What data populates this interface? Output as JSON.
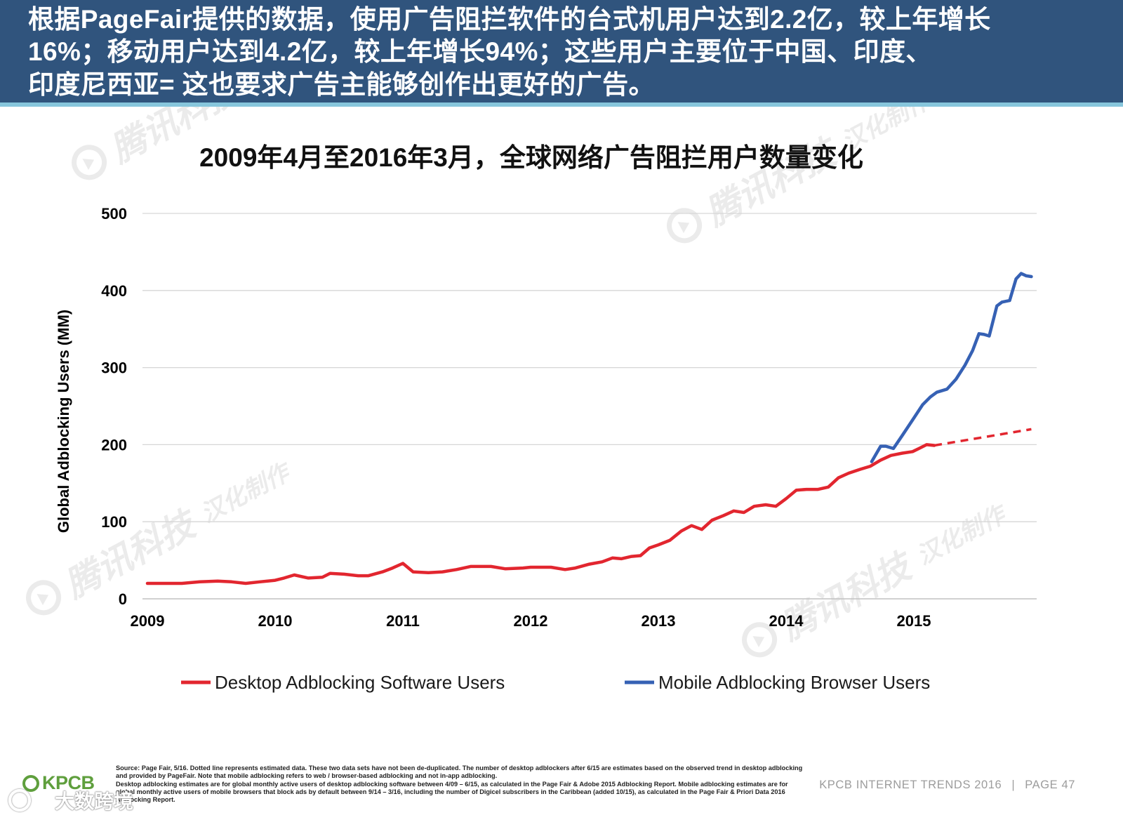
{
  "header": {
    "lines": [
      "根据PageFair提供的数据，使用广告阻拦软件的台式机用户达到2.2亿，较上年增长",
      "16%；移动用户达到4.2亿，较上年增长94%；这些用户主要位于中国、印度、",
      "印度尼西亚= 这也要求广告主能够创作出更好的广告。"
    ]
  },
  "watermark": {
    "brand": "腾讯科技",
    "subtitle": "汉化制作"
  },
  "chart_data": {
    "type": "line",
    "title": "2009年4月至2016年3月，全球网络广告阻拦用户数量变化",
    "xlabel": "",
    "ylabel": "Global Adblocking Users (MM)",
    "ylim": [
      0,
      500
    ],
    "yticks": [
      0,
      100,
      200,
      300,
      400,
      500
    ],
    "xticks": [
      2009,
      2010,
      2011,
      2012,
      2013,
      2014,
      2015
    ],
    "grid": true,
    "legend": "bottom",
    "series": [
      {
        "name": "Desktop Adblocking Software Users",
        "color": "#e2262f",
        "x": [
          2009.0,
          2009.14,
          2009.27,
          2009.41,
          2009.55,
          2009.66,
          2009.77,
          2009.88,
          2010.0,
          2010.07,
          2010.15,
          2010.26,
          2010.37,
          2010.43,
          2010.54,
          2010.65,
          2010.73,
          2010.84,
          2010.92,
          2011.0,
          2011.08,
          2011.2,
          2011.31,
          2011.42,
          2011.53,
          2011.69,
          2011.8,
          2011.94,
          2012.0,
          2012.16,
          2012.27,
          2012.35,
          2012.46,
          2012.56,
          2012.64,
          2012.71,
          2012.79,
          2012.86,
          2012.93,
          2013.0,
          2013.09,
          2013.18,
          2013.26,
          2013.34,
          2013.42,
          2013.51,
          2013.59,
          2013.67,
          2013.75,
          2013.84,
          2013.92,
          2014.0,
          2014.08,
          2014.16,
          2014.25,
          2014.33,
          2014.41,
          2014.49,
          2014.58,
          2014.66,
          2014.74,
          2014.82,
          2014.91,
          2014.99,
          2015.04,
          2015.1,
          2015.16
        ],
        "y": [
          20,
          20,
          20,
          22,
          23,
          22,
          20,
          22,
          24,
          27,
          31,
          27,
          28,
          33,
          32,
          30,
          30,
          35,
          40,
          46,
          35,
          34,
          35,
          38,
          42,
          42,
          39,
          40,
          41,
          41,
          38,
          40,
          45,
          48,
          53,
          52,
          55,
          56,
          66,
          70,
          76,
          88,
          95,
          90,
          102,
          108,
          114,
          112,
          120,
          122,
          120,
          130,
          141,
          142,
          142,
          145,
          157,
          163,
          168,
          172,
          180,
          186,
          189,
          191,
          195,
          200,
          199
        ],
        "estimate_x": [
          2015.16,
          2015.92
        ],
        "estimate_y": [
          199,
          220
        ]
      },
      {
        "name": "Mobile Adblocking Browser Users",
        "color": "#3661b4",
        "x": [
          2014.67,
          2014.74,
          2014.78,
          2014.84,
          2014.91,
          2014.99,
          2015.07,
          2015.13,
          2015.18,
          2015.26,
          2015.33,
          2015.4,
          2015.46,
          2015.51,
          2015.55,
          2015.59,
          2015.65,
          2015.69,
          2015.75,
          2015.8,
          2015.84,
          2015.88,
          2015.92
        ],
        "y": [
          178,
          198,
          198,
          195,
          212,
          232,
          252,
          262,
          268,
          272,
          285,
          303,
          322,
          344,
          343,
          341,
          380,
          385,
          387,
          415,
          422,
          419,
          418
        ]
      }
    ]
  },
  "footer": {
    "logo_text": "KPCB",
    "watermark_text": "大数跨境",
    "report": "KPCB INTERNET TRENDS 2016",
    "separator": "|",
    "page": "PAGE 47",
    "source_note": [
      "Source: Page Fair, 5/16. Dotted line represents estimated data. These two data sets have not been de-duplicated. The number of desktop adblockers after 6/15 are estimates based on the observed trend in desktop adblocking and provided by PageFair. Note that mobile adblocking refers to web / browser-based adblocking and not in-app adblocking.",
      "Desktop adblocking estimates are for global monthly active users of desktop adblocking software between 4/09 – 6/15, as calculated in the Page Fair & Adobe 2015 Adblocking Report. Mobile adblocking estimates are for global monthly active users of mobile browsers that block ads by default between 9/14 – 3/16, including the number of Digicel subscribers in the Caribbean (added 10/15), as calculated in the Page Fair & Priori Data 2016 Adblocking Report."
    ]
  }
}
